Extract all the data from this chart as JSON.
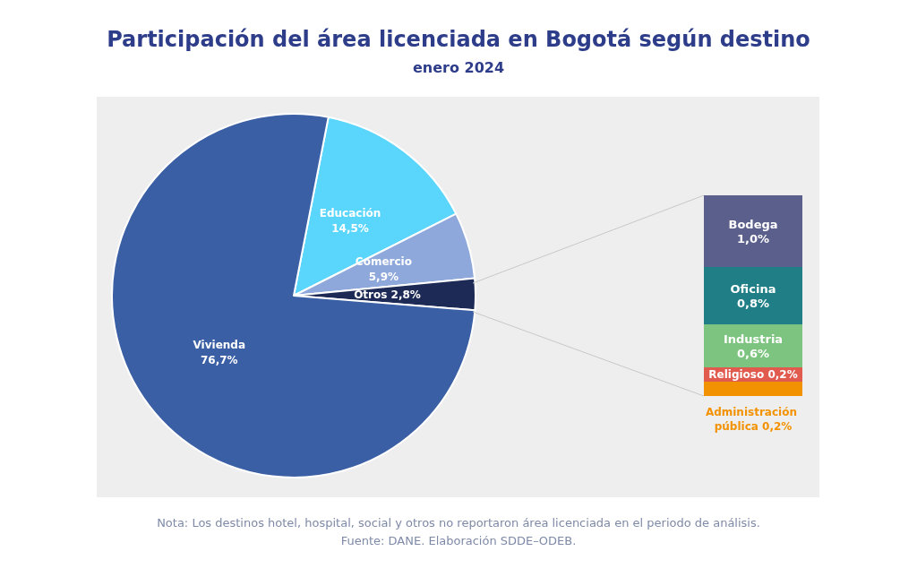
{
  "chart_data": [
    {
      "type": "pie",
      "title": "Participación del área licenciada en Bogotá según destino",
      "subtitle": "enero 2024",
      "categories": [
        "Educación",
        "Comercio",
        "Otros",
        "Vivienda"
      ],
      "values": [
        14.5,
        5.9,
        2.8,
        76.7
      ],
      "colors": [
        "#5ad5fb",
        "#8fa8db",
        "#1c2a55",
        "#3a5fa5"
      ],
      "value_labels": [
        "14,5%",
        "5,9%",
        "2,8%",
        "76,7%"
      ],
      "annotations": [
        "Nota: Los destinos hotel, hospital, social y otros no reportaron área licenciada en el periodo de análisis.",
        "Fuente: DANE. Elaboración SDDE–ODEB."
      ]
    },
    {
      "type": "bar",
      "stacked": true,
      "categories": [
        null
      ],
      "series": [
        {
          "name": "Administración pública",
          "color": "#f39200",
          "values": [
            0.2
          ],
          "value_labels": [
            "0,2%"
          ]
        },
        {
          "name": "Religioso",
          "color": "#e05a4e",
          "values": [
            0.2
          ],
          "value_labels": [
            "0,2%"
          ]
        },
        {
          "name": "Industria",
          "color": "#7cc47f",
          "values": [
            0.6
          ],
          "value_labels": [
            "0,6%"
          ]
        },
        {
          "name": "Oficina",
          "color": "#1f7e86",
          "values": [
            0.8
          ],
          "value_labels": [
            "0,8%"
          ]
        },
        {
          "name": "Bodega",
          "color": "#5a5f8c",
          "values": [
            1.0
          ],
          "value_labels": [
            "1,0%"
          ]
        }
      ]
    }
  ]
}
